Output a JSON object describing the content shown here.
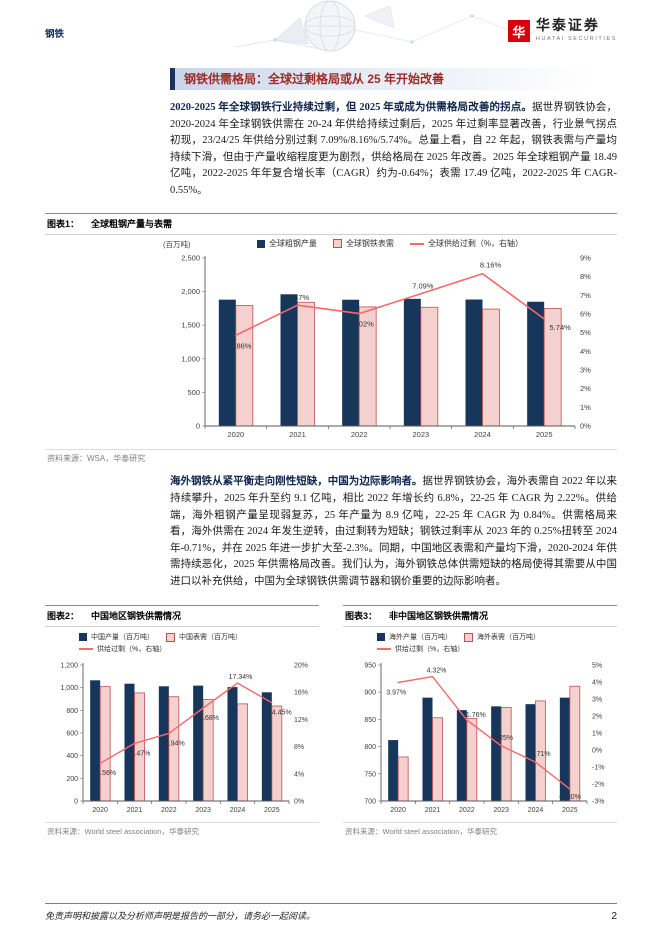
{
  "page": {
    "header": {
      "category": "钢铁",
      "brand": {
        "logo_char": "华",
        "name": "华泰证券",
        "name_en": "HUATAI SECURITIES"
      }
    },
    "title": "钢铁供需格局：全球过剩格局或从 25 年开始改善",
    "para1": {
      "lead": "2020-2025 年全球钢铁行业持续过剩，但 2025 年或成为供需格局改善的拐点。",
      "body": "据世界钢铁协会，2020-2024 年全球钢铁供需在 20-24 年供给持续过剩后，2025 年过剩率显著改善，行业景气拐点初现，23/24/25 年供给分别过剩 7.09%/8.16%/5.74%。总量上看，自 22 年起，钢铁表需与产量均持续下滑，但由于产量收缩程度更为剧烈，供给格局在 2025 年改善。2025 年全球粗钢产量 18.49 亿吨，2022-2025 年年复合增长率（CAGR）约为-0.64%；表需 17.49 亿吨，2022-2025 年 CAGR-0.55%。"
    },
    "para2": {
      "lead": "海外钢铁从紧平衡走向刚性短缺，中国为边际影响者。",
      "body": "据世界钢铁协会，海外表需自 2022 年以来持续攀升，2025 年升至约 9.1 亿吨，相比 2022 年增长约 6.8%，22-25 年 CAGR 为 2.22%。供给端，海外粗钢产量呈现弱复苏，25 年产量为 8.9 亿吨，22-25 年 CAGR 为 0.84%。供需格局来看，海外供需在 2024 年发生逆转，由过剩转为短缺；钢铁过剩率从 2023 年的 0.25%扭转至 2024 年-0.71%，并在 2025 年进一步扩大至-2.3%。同期，中国地区表需和产量均下滑，2020-2024 年供需持续恶化，2025 年供需格局改善。我们认为，海外钢铁总体供需短缺的格局使得其需要从中国进口以补充供给，中国为全球钢铁供需调节器和钢价重要的边际影响者。"
    },
    "footer": {
      "disclaimer": "免责声明和披露以及分析师声明是报告的一部分，请务必一起阅读。",
      "page_number": "2"
    }
  },
  "colors": {
    "bar_primary": "#16365c",
    "bar_secondary_fill": "#f4d0ce",
    "bar_secondary_stroke": "#c0504d",
    "line": "#f8696b",
    "title_red": "#9e2b25",
    "brand_red": "#d7000f"
  },
  "chart_data": [
    {
      "id": "fig1",
      "type": "bar",
      "label": "图表1：",
      "title": "全球粗钢产量与表需",
      "unit_note": "(百万吨)",
      "source_label": "资料来源：",
      "source": "WSA，华泰研究",
      "categories": [
        "2020",
        "2021",
        "2022",
        "2023",
        "2024",
        "2025"
      ],
      "series": [
        {
          "name": "全球粗钢产量",
          "type": "bar",
          "axis": "left",
          "values": [
            1880,
            1960,
            1879,
            1892,
            1882,
            1849
          ]
        },
        {
          "name": "全球钢铁表需",
          "type": "bar",
          "axis": "left",
          "values": [
            1793,
            1841,
            1772,
            1767,
            1740,
            1749
          ]
        },
        {
          "name": "全球供给过剩（%，右轴）",
          "type": "line",
          "axis": "right",
          "values": [
            4.86,
            6.47,
            6.02,
            7.09,
            8.16,
            5.74
          ],
          "labels": [
            "4.86%",
            "6.47%",
            "6.02%",
            "7.09%",
            "8.16%",
            "5.74%"
          ]
        }
      ],
      "left_axis": {
        "min": 0,
        "max": 2500,
        "step": 500
      },
      "right_axis": {
        "min": 0,
        "max": 9,
        "step": 1,
        "format": "percent"
      },
      "grid": false,
      "legend_position": "top-center"
    },
    {
      "id": "fig2",
      "type": "bar",
      "label": "图表2：",
      "title": "中国地区钢铁供需情况",
      "source_label": "资料来源：",
      "source": "World steel association，华泰研究",
      "categories": [
        "2020",
        "2021",
        "2022",
        "2023",
        "2024",
        "2025"
      ],
      "series": [
        {
          "name": "中国产量（百万吨）",
          "type": "bar",
          "axis": "left",
          "values": [
            1065,
            1035,
            1012,
            1018,
            1005,
            959
          ]
        },
        {
          "name": "中国表需（百万吨）",
          "type": "bar",
          "axis": "left",
          "values": [
            1009,
            954,
            920,
            895,
            857,
            838
          ]
        },
        {
          "name": "供给过剩（%，右轴）",
          "type": "line",
          "axis": "right",
          "values": [
            5.56,
            8.47,
            9.94,
            13.68,
            17.34,
            14.45
          ],
          "labels": [
            "5.56%",
            "8.47%",
            "9.94%",
            "13.68%",
            "17.34%",
            "14.45%"
          ]
        }
      ],
      "left_axis": {
        "min": 0,
        "max": 1200,
        "step": 200
      },
      "right_axis": {
        "min": 0,
        "max": 20,
        "step": 4,
        "format": "percent"
      },
      "grid": false,
      "legend_position": "top-left"
    },
    {
      "id": "fig3",
      "type": "bar",
      "label": "图表3：",
      "title": "非中国地区钢铁供需情况",
      "source_label": "资料来源：",
      "source": "World steel association，华泰研究",
      "categories": [
        "2020",
        "2021",
        "2022",
        "2023",
        "2024",
        "2025"
      ],
      "series": [
        {
          "name": "海外产量（百万吨）",
          "type": "bar",
          "axis": "left",
          "values": [
            812,
            890,
            867,
            874,
            878,
            890
          ]
        },
        {
          "name": "海外表需（百万吨）",
          "type": "bar",
          "axis": "left",
          "values": [
            781,
            853,
            852,
            872,
            884,
            911
          ]
        },
        {
          "name": "供给过剩（%，右轴）",
          "type": "line",
          "axis": "right",
          "values": [
            3.97,
            4.32,
            1.76,
            0.25,
            -0.71,
            -2.3
          ],
          "labels": [
            "3.97%",
            "4.32%",
            "1.76%",
            "0.25%",
            "-0.71%",
            "-2.30%"
          ]
        }
      ],
      "left_axis": {
        "min": 700,
        "max": 950,
        "step": 50
      },
      "right_axis": {
        "min": -3,
        "max": 5,
        "step": 1,
        "format": "percent"
      },
      "grid": false,
      "legend_position": "top-left"
    }
  ]
}
